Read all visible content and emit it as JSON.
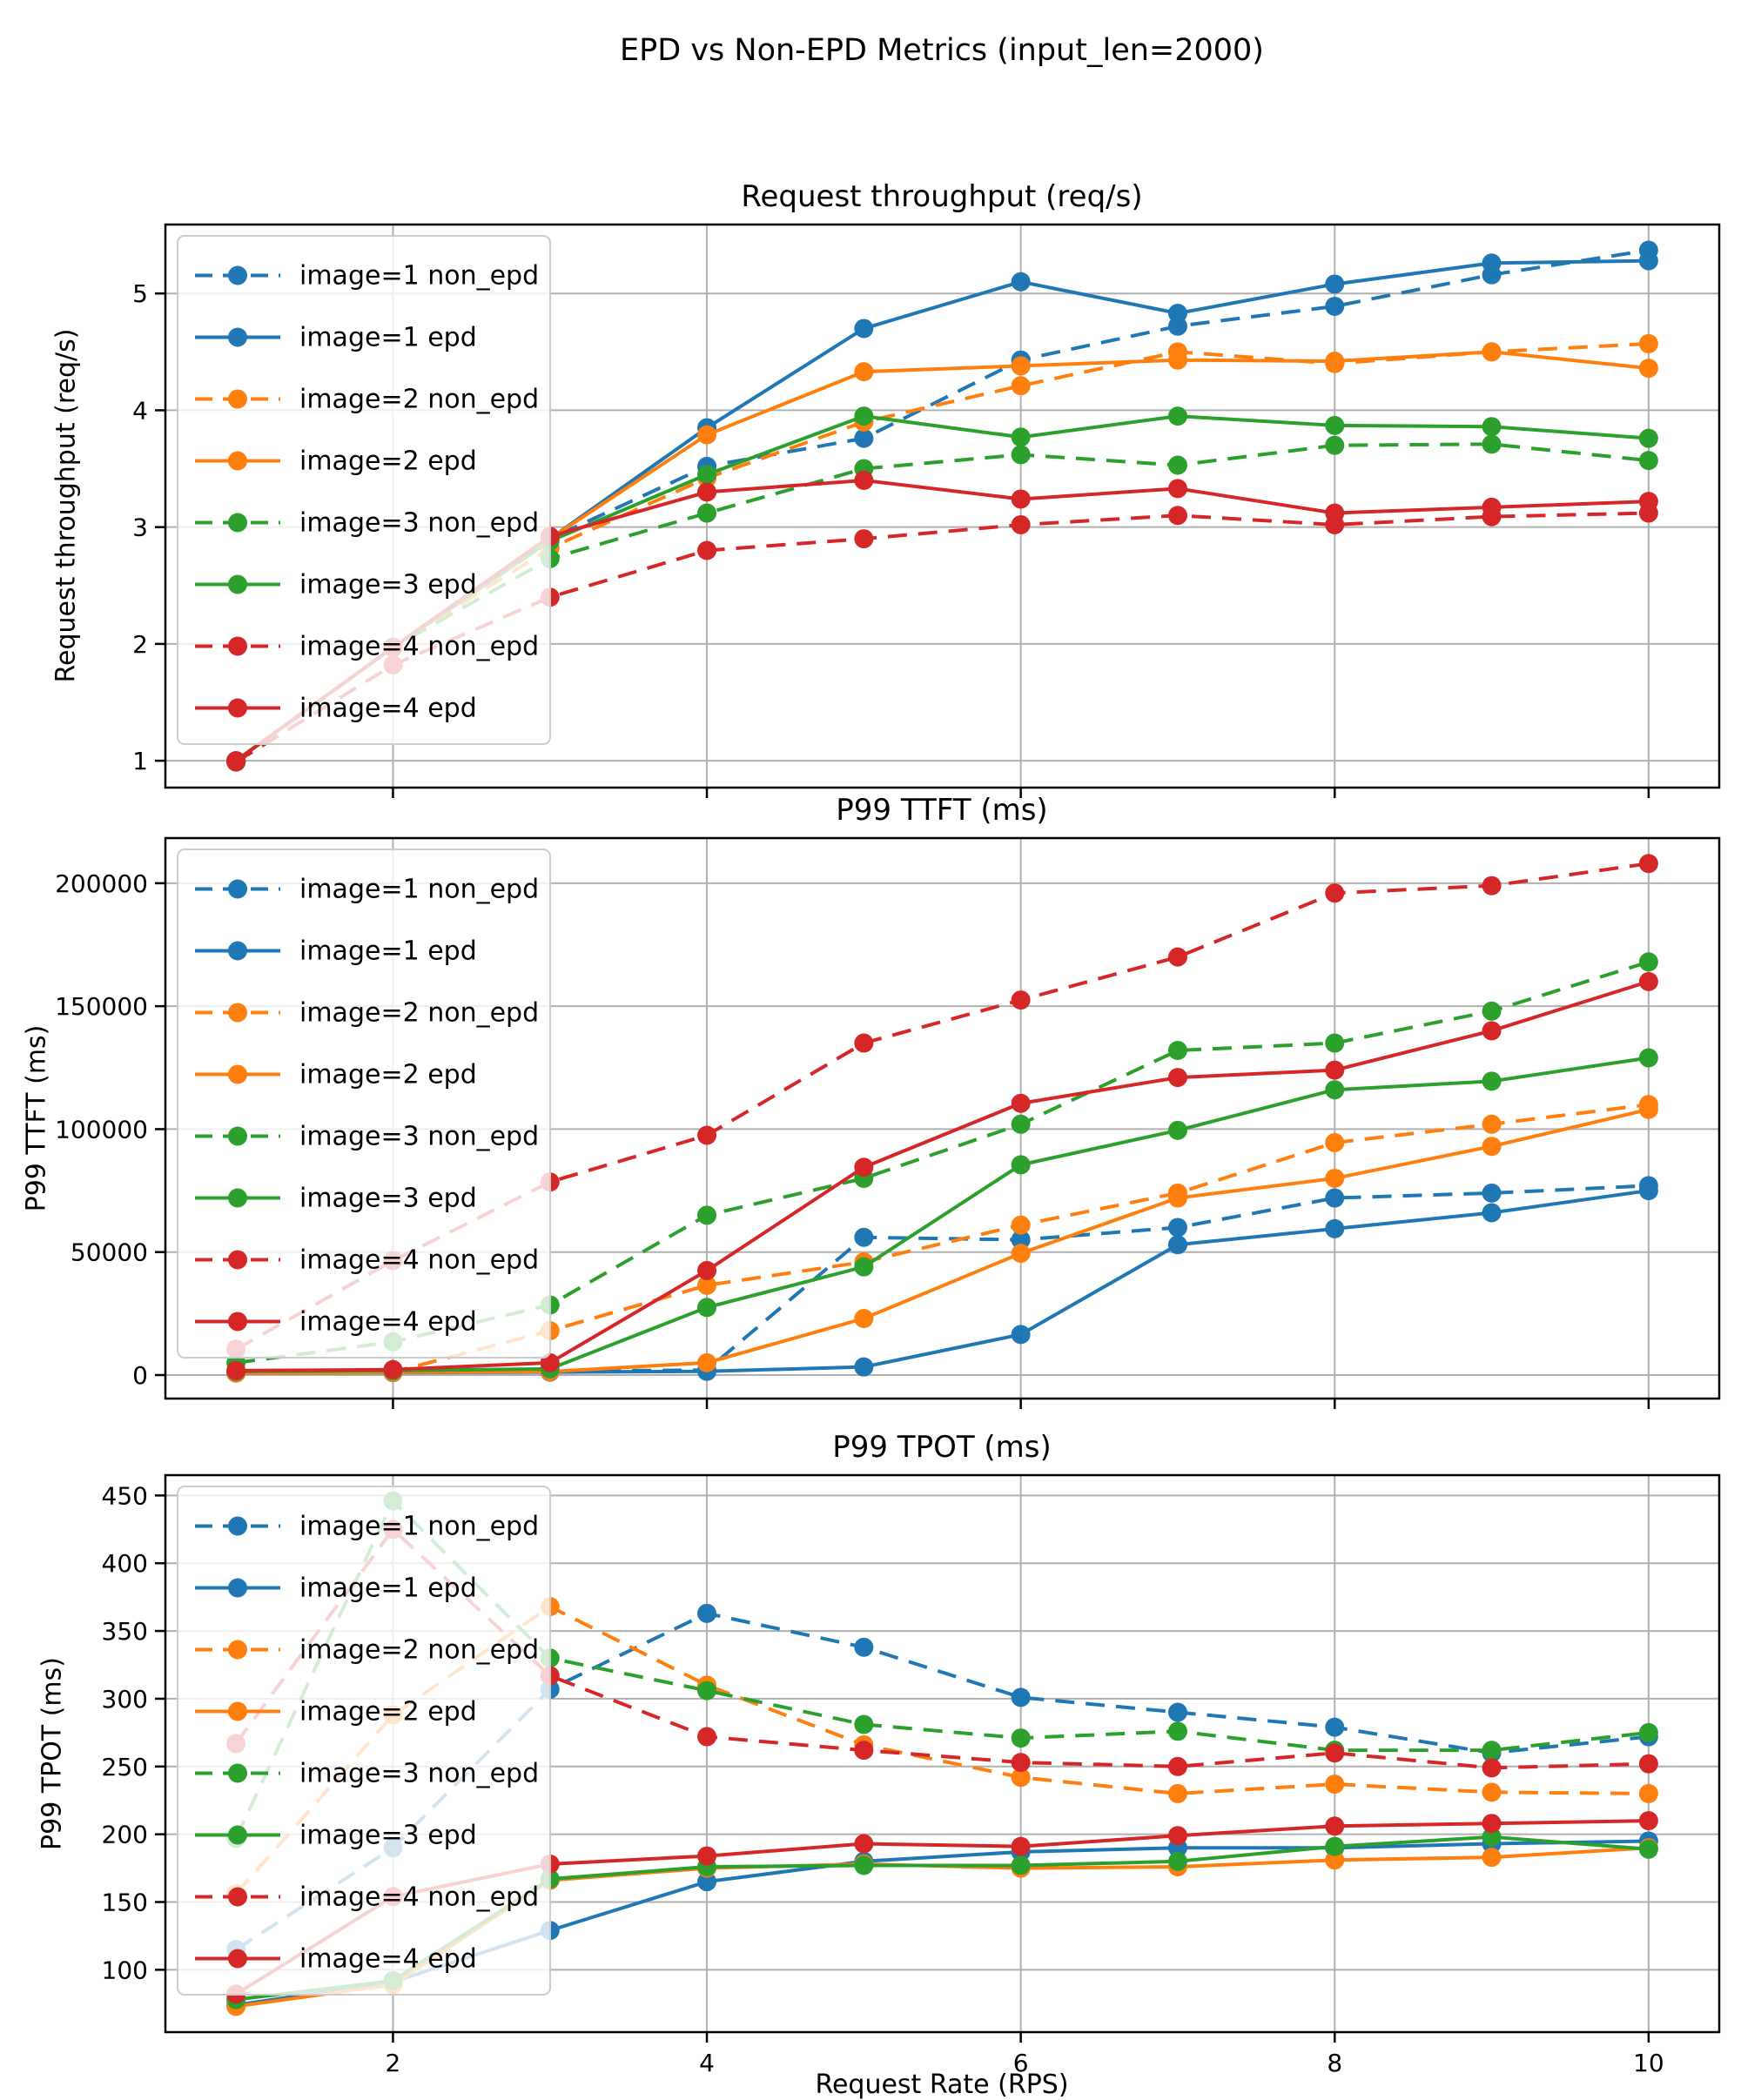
{
  "suptitle": "EPD vs Non-EPD Metrics (input_len=2000)",
  "xlabel": "Request Rate (RPS)",
  "palette": {
    "blue": "#1f77b4",
    "orange": "#ff7f0e",
    "green": "#2ca02c",
    "red": "#d62728"
  },
  "grid_color": "#b0b0b0",
  "legend_labels": [
    "image=1 non_epd",
    "image=1 epd",
    "image=2 non_epd",
    "image=2 epd",
    "image=3 non_epd",
    "image=3 epd",
    "image=4 non_epd",
    "image=4 epd"
  ],
  "chart_data": [
    {
      "type": "line",
      "title": "Request throughput (req/s)",
      "ylabel": "Request throughput (req/s)",
      "x": [
        1,
        2,
        3,
        4,
        5,
        6,
        7,
        8,
        9,
        10
      ],
      "xlim": [
        0.55,
        10.45
      ],
      "xticks": [
        2,
        4,
        6,
        8,
        10
      ],
      "xtick_labels": [
        "2",
        "4",
        "6",
        "8",
        "10"
      ],
      "ylim": [
        0.77,
        5.59
      ],
      "yticks": [
        1,
        2,
        3,
        4,
        5
      ],
      "ytick_labels": [
        "1",
        "2",
        "3",
        "4",
        "5"
      ],
      "grid": true,
      "legend_position": "upper-left",
      "series": [
        {
          "label": "image=1 non_epd",
          "color": "#1f77b4",
          "dashed": true,
          "values": [
            0.99,
            1.97,
            2.9,
            3.52,
            3.76,
            4.43,
            4.72,
            4.89,
            5.16,
            5.37
          ]
        },
        {
          "label": "image=1 epd",
          "color": "#1f77b4",
          "dashed": false,
          "values": [
            1.0,
            1.97,
            2.9,
            3.85,
            4.7,
            5.1,
            4.83,
            5.08,
            5.26,
            5.28
          ]
        },
        {
          "label": "image=2 non_epd",
          "color": "#ff7f0e",
          "dashed": true,
          "values": [
            0.99,
            1.97,
            2.82,
            3.42,
            3.9,
            4.21,
            4.5,
            4.4,
            4.5,
            4.57
          ]
        },
        {
          "label": "image=2 epd",
          "color": "#ff7f0e",
          "dashed": false,
          "values": [
            1.0,
            1.97,
            2.9,
            3.79,
            4.33,
            4.38,
            4.43,
            4.42,
            4.5,
            4.36
          ]
        },
        {
          "label": "image=3 non_epd",
          "color": "#2ca02c",
          "dashed": true,
          "values": [
            0.99,
            1.97,
            2.73,
            3.12,
            3.5,
            3.62,
            3.53,
            3.7,
            3.71,
            3.57
          ]
        },
        {
          "label": "image=3 epd",
          "color": "#2ca02c",
          "dashed": false,
          "values": [
            1.0,
            1.97,
            2.88,
            3.45,
            3.95,
            3.77,
            3.95,
            3.87,
            3.86,
            3.76
          ]
        },
        {
          "label": "image=4 non_epd",
          "color": "#d62728",
          "dashed": true,
          "values": [
            0.99,
            1.82,
            2.4,
            2.8,
            2.9,
            3.02,
            3.1,
            3.02,
            3.09,
            3.12
          ]
        },
        {
          "label": "image=4 epd",
          "color": "#d62728",
          "dashed": false,
          "values": [
            1.0,
            1.97,
            2.92,
            3.3,
            3.4,
            3.24,
            3.33,
            3.12,
            3.17,
            3.22
          ]
        }
      ]
    },
    {
      "type": "line",
      "title": "P99 TTFT (ms)",
      "ylabel": "P99 TTFT (ms)",
      "x": [
        1,
        2,
        3,
        4,
        5,
        6,
        7,
        8,
        9,
        10
      ],
      "xlim": [
        0.55,
        10.45
      ],
      "xticks": [
        2,
        4,
        6,
        8,
        10
      ],
      "xtick_labels": [
        "2",
        "4",
        "6",
        "8",
        "10"
      ],
      "ylim": [
        -9560,
        218360
      ],
      "yticks": [
        0,
        50000,
        100000,
        150000,
        200000
      ],
      "ytick_labels": [
        "0",
        "50000",
        "100000",
        "150000",
        "200000"
      ],
      "grid": true,
      "legend_position": "upper-left",
      "series": [
        {
          "label": "image=1 non_epd",
          "color": "#1f77b4",
          "dashed": true,
          "values": [
            1000,
            1300,
            1600,
            2000,
            56000,
            55000,
            60000,
            72000,
            74000,
            77000
          ]
        },
        {
          "label": "image=1 epd",
          "color": "#1f77b4",
          "dashed": false,
          "values": [
            800,
            1000,
            1200,
            1500,
            3300,
            16500,
            53000,
            59500,
            66000,
            75000
          ]
        },
        {
          "label": "image=2 non_epd",
          "color": "#ff7f0e",
          "dashed": true,
          "values": [
            900,
            1200,
            18000,
            36500,
            46000,
            61000,
            74000,
            94500,
            102000,
            110000
          ]
        },
        {
          "label": "image=2 epd",
          "color": "#ff7f0e",
          "dashed": false,
          "values": [
            900,
            1100,
            1400,
            5000,
            23000,
            49500,
            72000,
            80000,
            93000,
            108000
          ]
        },
        {
          "label": "image=3 non_epd",
          "color": "#2ca02c",
          "dashed": true,
          "values": [
            5000,
            13500,
            28500,
            65000,
            80000,
            102000,
            132000,
            135000,
            148000,
            168000
          ]
        },
        {
          "label": "image=3 epd",
          "color": "#2ca02c",
          "dashed": false,
          "values": [
            1500,
            1800,
            2500,
            27500,
            44000,
            85500,
            99500,
            116000,
            119500,
            129000
          ]
        },
        {
          "label": "image=4 non_epd",
          "color": "#d62728",
          "dashed": true,
          "values": [
            10500,
            46500,
            78500,
            97500,
            135000,
            152500,
            170000,
            196000,
            199000,
            208000
          ]
        },
        {
          "label": "image=4 epd",
          "color": "#d62728",
          "dashed": false,
          "values": [
            1800,
            2200,
            5000,
            42500,
            84500,
            110500,
            121000,
            124000,
            140000,
            160000
          ]
        }
      ]
    },
    {
      "type": "line",
      "title": "P99 TPOT (ms)",
      "ylabel": "P99 TPOT (ms)",
      "x": [
        1,
        2,
        3,
        4,
        5,
        6,
        7,
        8,
        9,
        10
      ],
      "xlim": [
        0.55,
        10.45
      ],
      "xticks": [
        2,
        4,
        6,
        8,
        10
      ],
      "xtick_labels": [
        "2",
        "4",
        "6",
        "8",
        "10"
      ],
      "ylim": [
        54,
        465
      ],
      "yticks": [
        100,
        150,
        200,
        250,
        300,
        350,
        400,
        450
      ],
      "ytick_labels": [
        "100",
        "150",
        "200",
        "250",
        "300",
        "350",
        "400",
        "450"
      ],
      "grid": true,
      "legend_position": "upper-left",
      "series": [
        {
          "label": "image=1 non_epd",
          "color": "#1f77b4",
          "dashed": true,
          "values": [
            115,
            190,
            307,
            363,
            338,
            301,
            290,
            279,
            260,
            272
          ]
        },
        {
          "label": "image=1 epd",
          "color": "#1f77b4",
          "dashed": false,
          "values": [
            74,
            91,
            129,
            165,
            180,
            187,
            190,
            190,
            193,
            195
          ]
        },
        {
          "label": "image=2 non_epd",
          "color": "#ff7f0e",
          "dashed": true,
          "values": [
            156,
            288,
            368,
            310,
            266,
            242,
            230,
            237,
            231,
            230
          ]
        },
        {
          "label": "image=2 epd",
          "color": "#ff7f0e",
          "dashed": false,
          "values": [
            73,
            89,
            166,
            175,
            178,
            175,
            176,
            181,
            183,
            190
          ]
        },
        {
          "label": "image=3 non_epd",
          "color": "#2ca02c",
          "dashed": true,
          "values": [
            197,
            446,
            330,
            306,
            281,
            271,
            276,
            262,
            262,
            275
          ]
        },
        {
          "label": "image=3 epd",
          "color": "#2ca02c",
          "dashed": false,
          "values": [
            78,
            92,
            167,
            176,
            177,
            177,
            180,
            191,
            198,
            189
          ]
        },
        {
          "label": "image=4 non_epd",
          "color": "#d62728",
          "dashed": true,
          "values": [
            267,
            425,
            317,
            272,
            262,
            253,
            250,
            260,
            249,
            252
          ]
        },
        {
          "label": "image=4 epd",
          "color": "#d62728",
          "dashed": false,
          "values": [
            82,
            154,
            178,
            184,
            193,
            191,
            199,
            206,
            208,
            210
          ]
        }
      ]
    }
  ]
}
